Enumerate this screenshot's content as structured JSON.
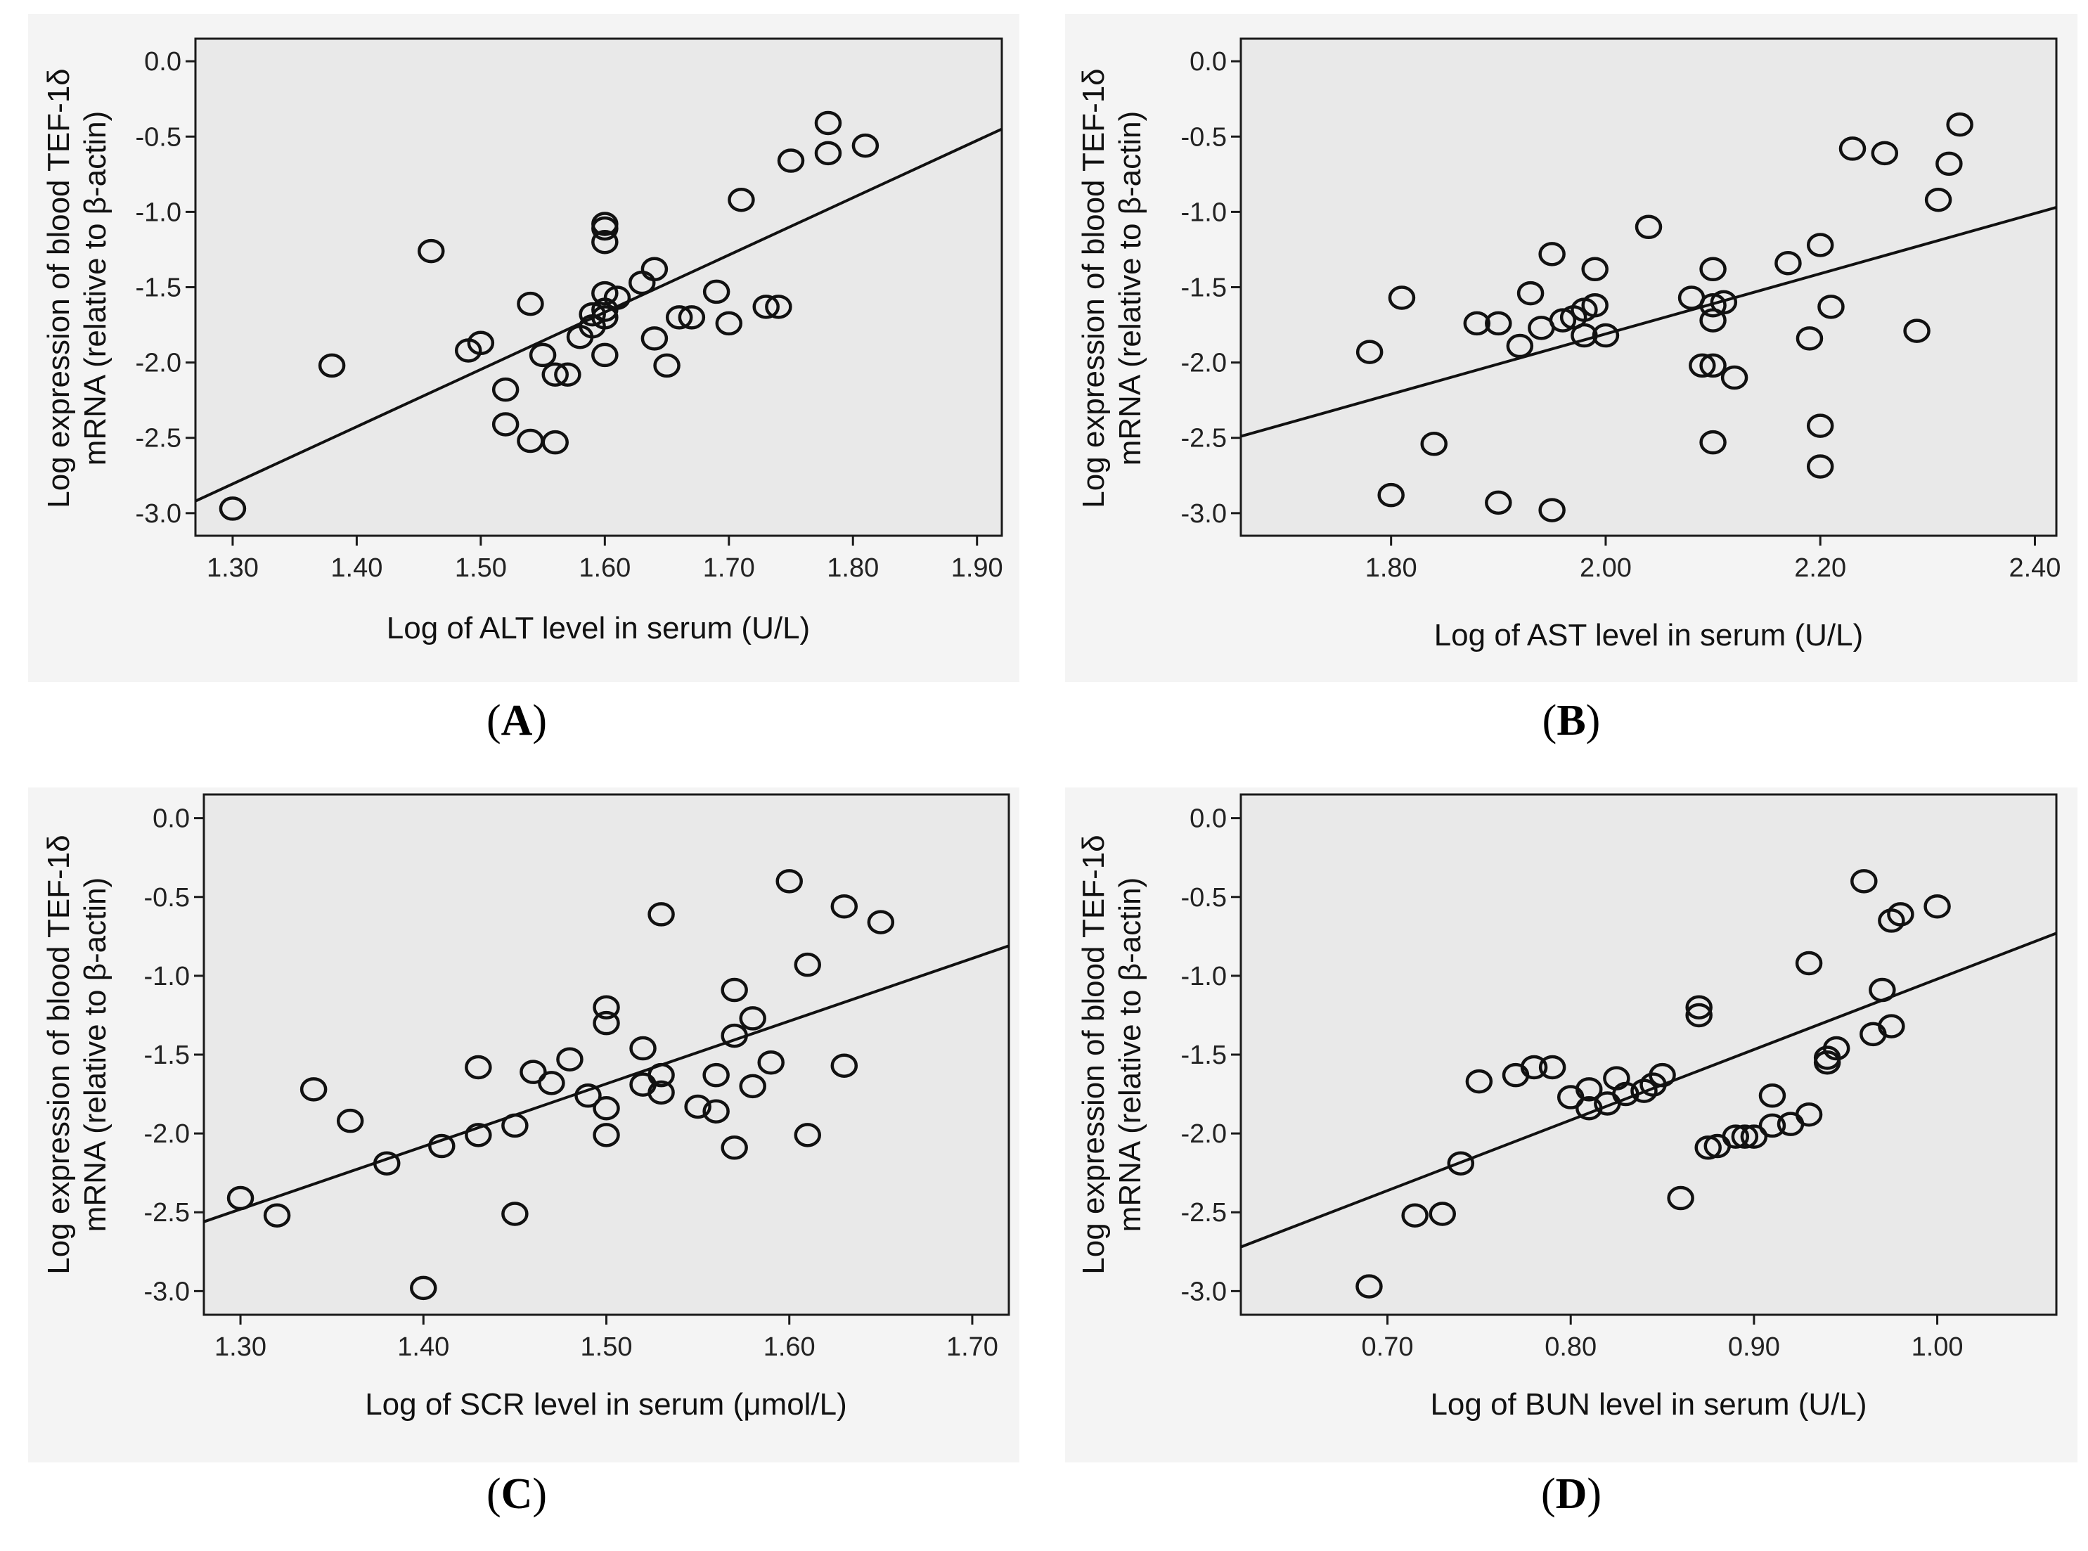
{
  "chart_data": [
    {
      "type": "scatter",
      "panel_label": "(A)",
      "panel_letter": "A",
      "xlabel": "Log of ALT level in serum (U/L)",
      "ylabel_line1": "Log expression of blood TEF-1δ",
      "ylabel_line2": "mRNA (relative to β-actin)",
      "xlim": [
        1.27,
        1.92
      ],
      "ylim": [
        -3.15,
        0.15
      ],
      "xticks": [
        1.3,
        1.4,
        1.5,
        1.6,
        1.7,
        1.8,
        1.9
      ],
      "xtick_labels": [
        "1.30",
        "1.40",
        "1.50",
        "1.60",
        "1.70",
        "1.80",
        "1.90"
      ],
      "yticks": [
        0.0,
        -0.5,
        -1.0,
        -1.5,
        -2.0,
        -2.5,
        -3.0
      ],
      "ytick_labels": [
        "0.0",
        "-0.5",
        "-1.0",
        "-1.5",
        "-2.0",
        "-2.5",
        "-3.0"
      ],
      "fit_line": {
        "x": [
          1.27,
          1.92
        ],
        "y": [
          -2.92,
          -0.45
        ]
      },
      "points": [
        [
          1.3,
          -2.97
        ],
        [
          1.38,
          -2.02
        ],
        [
          1.46,
          -1.26
        ],
        [
          1.49,
          -1.92
        ],
        [
          1.5,
          -1.87
        ],
        [
          1.52,
          -2.18
        ],
        [
          1.52,
          -2.41
        ],
        [
          1.54,
          -1.61
        ],
        [
          1.54,
          -2.52
        ],
        [
          1.55,
          -1.95
        ],
        [
          1.56,
          -2.08
        ],
        [
          1.57,
          -2.08
        ],
        [
          1.56,
          -2.53
        ],
        [
          1.58,
          -1.83
        ],
        [
          1.59,
          -1.68
        ],
        [
          1.59,
          -1.76
        ],
        [
          1.6,
          -1.7
        ],
        [
          1.6,
          -1.08
        ],
        [
          1.6,
          -1.11
        ],
        [
          1.6,
          -1.2
        ],
        [
          1.6,
          -1.54
        ],
        [
          1.6,
          -1.65
        ],
        [
          1.6,
          -1.95
        ],
        [
          1.61,
          -1.57
        ],
        [
          1.63,
          -1.47
        ],
        [
          1.64,
          -1.38
        ],
        [
          1.64,
          -1.84
        ],
        [
          1.65,
          -2.02
        ],
        [
          1.66,
          -1.7
        ],
        [
          1.67,
          -1.7
        ],
        [
          1.69,
          -1.53
        ],
        [
          1.7,
          -1.74
        ],
        [
          1.71,
          -0.92
        ],
        [
          1.73,
          -1.63
        ],
        [
          1.74,
          -1.63
        ],
        [
          1.75,
          -0.66
        ],
        [
          1.78,
          -0.61
        ],
        [
          1.78,
          -0.41
        ],
        [
          1.81,
          -0.56
        ]
      ]
    },
    {
      "type": "scatter",
      "panel_label": "(B)",
      "panel_letter": "B",
      "xlabel": "Log of AST level in serum (U/L)",
      "ylabel_line1": "Log expression of blood TEF-1δ",
      "ylabel_line2": "mRNA (relative to β-actin)",
      "xlim": [
        1.66,
        2.42
      ],
      "ylim": [
        -3.15,
        0.15
      ],
      "xticks": [
        1.8,
        2.0,
        2.2,
        2.4
      ],
      "xtick_labels": [
        "1.80",
        "2.00",
        "2.20",
        "2.40"
      ],
      "yticks": [
        0.0,
        -0.5,
        -1.0,
        -1.5,
        -2.0,
        -2.5,
        -3.0
      ],
      "ytick_labels": [
        "0.0",
        "-0.5",
        "-1.0",
        "-1.5",
        "-2.0",
        "-2.5",
        "-3.0"
      ],
      "fit_line": {
        "x": [
          1.66,
          2.42
        ],
        "y": [
          -2.49,
          -0.97
        ]
      },
      "points": [
        [
          1.78,
          -1.93
        ],
        [
          1.8,
          -2.88
        ],
        [
          1.81,
          -1.57
        ],
        [
          1.84,
          -2.54
        ],
        [
          1.88,
          -1.74
        ],
        [
          1.9,
          -1.74
        ],
        [
          1.9,
          -2.93
        ],
        [
          1.92,
          -1.89
        ],
        [
          1.93,
          -1.54
        ],
        [
          1.94,
          -1.77
        ],
        [
          1.95,
          -1.28
        ],
        [
          1.95,
          -2.98
        ],
        [
          1.96,
          -1.72
        ],
        [
          1.97,
          -1.7
        ],
        [
          1.98,
          -1.65
        ],
        [
          1.98,
          -1.82
        ],
        [
          1.99,
          -1.38
        ],
        [
          1.99,
          -1.62
        ],
        [
          2.0,
          -1.82
        ],
        [
          2.04,
          -1.1
        ],
        [
          2.08,
          -1.57
        ],
        [
          2.09,
          -2.02
        ],
        [
          2.1,
          -2.02
        ],
        [
          2.1,
          -1.38
        ],
        [
          2.1,
          -1.62
        ],
        [
          2.1,
          -1.72
        ],
        [
          2.1,
          -2.53
        ],
        [
          2.11,
          -1.6
        ],
        [
          2.12,
          -2.1
        ],
        [
          2.17,
          -1.34
        ],
        [
          2.19,
          -1.84
        ],
        [
          2.2,
          -2.69
        ],
        [
          2.2,
          -1.22
        ],
        [
          2.2,
          -2.42
        ],
        [
          2.21,
          -1.63
        ],
        [
          2.23,
          -0.58
        ],
        [
          2.26,
          -0.61
        ],
        [
          2.29,
          -1.79
        ],
        [
          2.31,
          -0.92
        ],
        [
          2.32,
          -0.68
        ],
        [
          2.33,
          -0.42
        ]
      ]
    },
    {
      "type": "scatter",
      "panel_label": "(C)",
      "panel_letter": "C",
      "xlabel": "Log of SCR level in serum (μmol/L)",
      "ylabel_line1": "Log expression of blood TEF-1δ",
      "ylabel_line2": "mRNA (relative to β-actin)",
      "xlim": [
        1.28,
        1.72
      ],
      "ylim": [
        -3.15,
        0.15
      ],
      "xticks": [
        1.3,
        1.4,
        1.5,
        1.6,
        1.7
      ],
      "xtick_labels": [
        "1.30",
        "1.40",
        "1.50",
        "1.60",
        "1.70"
      ],
      "yticks": [
        0.0,
        -0.5,
        -1.0,
        -1.5,
        -2.0,
        -2.5,
        -3.0
      ],
      "ytick_labels": [
        "0.0",
        "-0.5",
        "-1.0",
        "-1.5",
        "-2.0",
        "-2.5",
        "-3.0"
      ],
      "fit_line": {
        "x": [
          1.28,
          1.72
        ],
        "y": [
          -2.56,
          -0.81
        ]
      },
      "points": [
        [
          1.3,
          -2.41
        ],
        [
          1.32,
          -2.52
        ],
        [
          1.34,
          -1.72
        ],
        [
          1.36,
          -1.92
        ],
        [
          1.38,
          -2.19
        ],
        [
          1.4,
          -2.98
        ],
        [
          1.41,
          -2.08
        ],
        [
          1.43,
          -1.58
        ],
        [
          1.43,
          -2.01
        ],
        [
          1.45,
          -1.95
        ],
        [
          1.45,
          -2.51
        ],
        [
          1.46,
          -1.61
        ],
        [
          1.47,
          -1.68
        ],
        [
          1.48,
          -1.53
        ],
        [
          1.49,
          -1.76
        ],
        [
          1.5,
          -1.2
        ],
        [
          1.5,
          -1.3
        ],
        [
          1.5,
          -1.84
        ],
        [
          1.5,
          -2.01
        ],
        [
          1.52,
          -1.46
        ],
        [
          1.52,
          -1.69
        ],
        [
          1.53,
          -1.63
        ],
        [
          1.53,
          -0.61
        ],
        [
          1.53,
          -1.74
        ],
        [
          1.55,
          -1.83
        ],
        [
          1.56,
          -1.63
        ],
        [
          1.56,
          -1.86
        ],
        [
          1.57,
          -1.09
        ],
        [
          1.57,
          -1.38
        ],
        [
          1.57,
          -2.09
        ],
        [
          1.58,
          -1.27
        ],
        [
          1.58,
          -1.7
        ],
        [
          1.59,
          -1.55
        ],
        [
          1.6,
          -0.4
        ],
        [
          1.61,
          -0.93
        ],
        [
          1.61,
          -2.01
        ],
        [
          1.63,
          -0.56
        ],
        [
          1.63,
          -1.57
        ],
        [
          1.65,
          -0.66
        ]
      ]
    },
    {
      "type": "scatter",
      "panel_label": "(D)",
      "panel_letter": "D",
      "xlabel": "Log of BUN level in serum (U/L)",
      "ylabel_line1": "Log expression of blood TEF-1δ",
      "ylabel_line2": "mRNA (relative to β-actin)",
      "xlim": [
        0.62,
        1.065
      ],
      "ylim": [
        -3.15,
        0.15
      ],
      "xticks": [
        0.7,
        0.8,
        0.9,
        1.0
      ],
      "xtick_labels": [
        "0.70",
        "0.80",
        "0.90",
        "1.00"
      ],
      "yticks": [
        0.0,
        -0.5,
        -1.0,
        -1.5,
        -2.0,
        -2.5,
        -3.0
      ],
      "ytick_labels": [
        "0.0",
        "-0.5",
        "-1.0",
        "-1.5",
        "-2.0",
        "-2.5",
        "-3.0"
      ],
      "fit_line": {
        "x": [
          0.62,
          1.065
        ],
        "y": [
          -2.72,
          -0.73
        ]
      },
      "points": [
        [
          0.69,
          -2.97
        ],
        [
          0.715,
          -2.52
        ],
        [
          0.73,
          -2.51
        ],
        [
          0.74,
          -2.19
        ],
        [
          0.75,
          -1.67
        ],
        [
          0.77,
          -1.63
        ],
        [
          0.78,
          -1.58
        ],
        [
          0.79,
          -1.58
        ],
        [
          0.8,
          -1.77
        ],
        [
          0.81,
          -1.84
        ],
        [
          0.81,
          -1.72
        ],
        [
          0.82,
          -1.81
        ],
        [
          0.825,
          -1.65
        ],
        [
          0.83,
          -1.75
        ],
        [
          0.84,
          -1.73
        ],
        [
          0.845,
          -1.69
        ],
        [
          0.85,
          -1.63
        ],
        [
          0.86,
          -2.41
        ],
        [
          0.87,
          -1.2
        ],
        [
          0.87,
          -1.25
        ],
        [
          0.875,
          -2.09
        ],
        [
          0.88,
          -2.08
        ],
        [
          0.89,
          -2.02
        ],
        [
          0.895,
          -2.02
        ],
        [
          0.9,
          -2.02
        ],
        [
          0.91,
          -1.95
        ],
        [
          0.91,
          -1.76
        ],
        [
          0.92,
          -1.94
        ],
        [
          0.93,
          -1.88
        ],
        [
          0.93,
          -0.92
        ],
        [
          0.94,
          -1.52
        ],
        [
          0.94,
          -1.55
        ],
        [
          0.945,
          -1.46
        ],
        [
          0.96,
          -0.4
        ],
        [
          0.965,
          -1.37
        ],
        [
          0.97,
          -1.09
        ],
        [
          0.975,
          -0.65
        ],
        [
          0.975,
          -1.32
        ],
        [
          0.98,
          -0.61
        ],
        [
          1.0,
          -0.56
        ]
      ]
    }
  ]
}
